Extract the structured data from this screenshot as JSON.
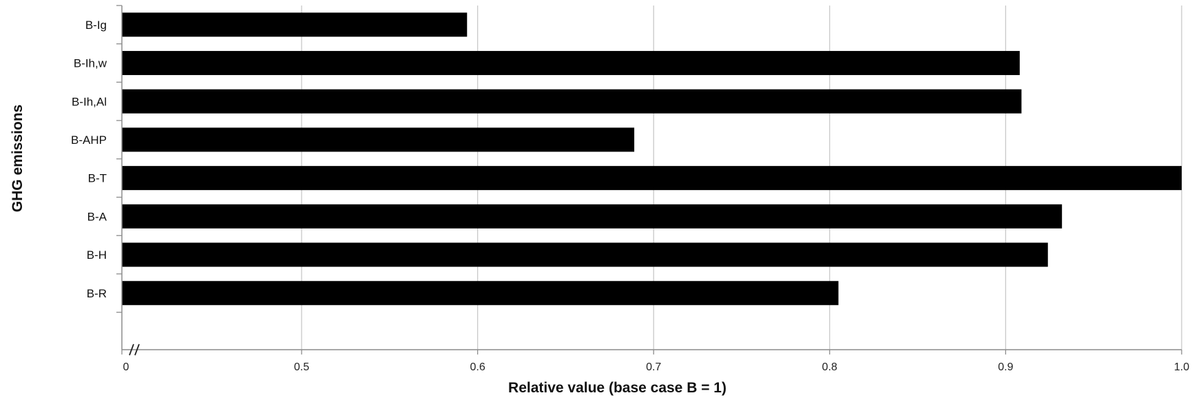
{
  "chart_data": {
    "type": "bar",
    "orientation": "horizontal",
    "categories": [
      "B-Ig",
      "B-Ih,w",
      "B-Ih,Al",
      "B-AHP",
      "B-T",
      "B-A",
      "B-H",
      "B-R"
    ],
    "values": [
      0.594,
      0.908,
      0.909,
      0.689,
      1.0,
      0.932,
      0.924,
      0.805
    ],
    "xlabel": "Relative value (base case B = 1)",
    "ylabel": "GHG emissions",
    "xticks": [
      0,
      0.5,
      0.6,
      0.7,
      0.8,
      0.9,
      1.0
    ],
    "xtick_labels": [
      "0",
      "0.5",
      "0.6",
      "0.7",
      "0.8",
      "0.9",
      "1.0"
    ],
    "xlim": [
      0.4,
      1.0
    ],
    "axis_break": true,
    "grid": "vertical",
    "legend": "none",
    "colors": {
      "bar": "#000000",
      "grid": "#c8c8c8",
      "axis": "#8c8c8c"
    }
  }
}
